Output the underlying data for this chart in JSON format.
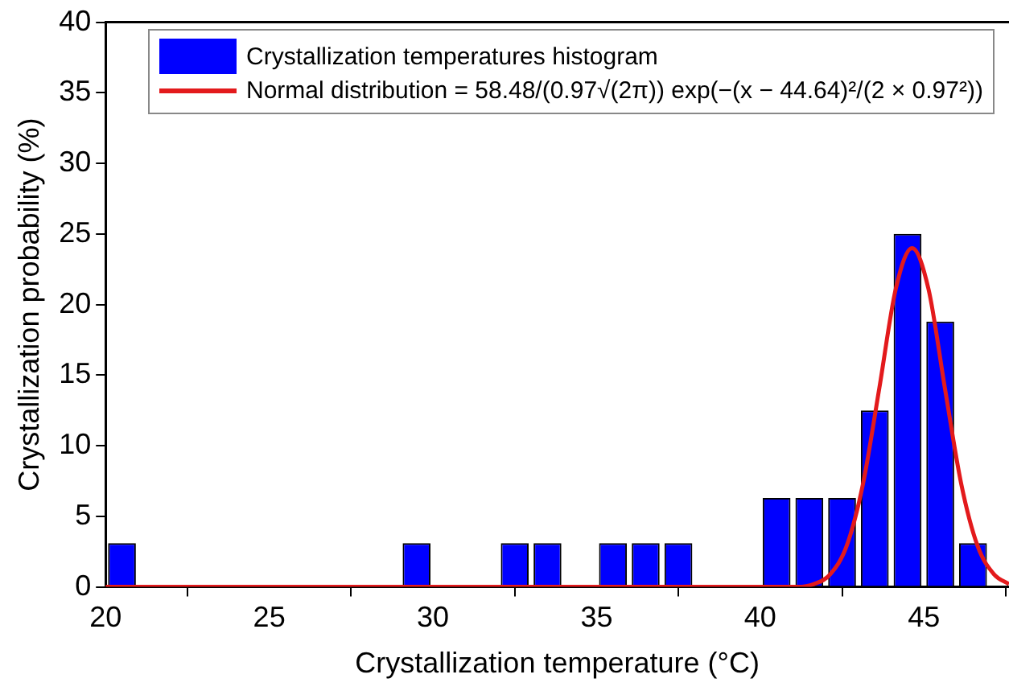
{
  "chart_data": {
    "type": "histogram",
    "xlabel": "Crystallization temperature (°C)",
    "ylabel": "Crystallization probability (%)",
    "bins": [
      20,
      21,
      22,
      23,
      24,
      25,
      26,
      27,
      28,
      29,
      30,
      31,
      32,
      33,
      34,
      35,
      36,
      37,
      38,
      39,
      40,
      41,
      42,
      43,
      44,
      45,
      46,
      47
    ],
    "series": [
      {
        "name": "Crystallization temperatures histogram",
        "color": "#0000ff",
        "values": [
          3.1,
          0,
          0,
          0,
          0,
          0,
          0,
          0,
          0,
          3.1,
          0,
          0,
          3.1,
          3.1,
          0,
          3.1,
          3.1,
          3.1,
          0,
          0,
          6.3,
          6.3,
          6.3,
          12.5,
          25,
          18.8,
          3.1
        ]
      },
      {
        "type": "line",
        "name": "Normal distribution = 58.48/(0.97√(2π)) exp(−(x − 44.64)²/(2 × 0.97²))",
        "color": "#e31a1c",
        "x": [
          20,
          40.64,
          41.14,
          41.64,
          42.14,
          42.64,
          43.14,
          43.64,
          44.14,
          44.64,
          45.14,
          45.64,
          46.14,
          46.64,
          47.14,
          47.6
        ],
        "values": [
          0,
          0,
          0,
          0.2,
          0.9,
          2.9,
          7.3,
          14.1,
          21.1,
          24,
          21.1,
          14.1,
          7.3,
          2.9,
          0.9,
          0.2
        ]
      }
    ],
    "xlim": [
      20,
      47.6
    ],
    "xticks": [
      20,
      25,
      30,
      35,
      40,
      45
    ],
    "ylim": [
      0,
      40
    ],
    "yticks": [
      0,
      5,
      10,
      15,
      20,
      25,
      30,
      35,
      40
    ],
    "grid": false,
    "legend": "top",
    "marker": "none",
    "line_style": "solid"
  }
}
